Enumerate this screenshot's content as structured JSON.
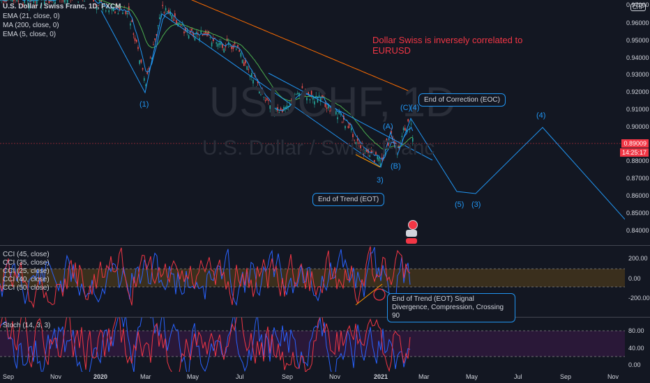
{
  "main_pane": {
    "title": "U.S. Dollar / Swiss Franc, 1D, FXCM",
    "indicators": [
      "EMA (21, close, 0)",
      "MA (200, close, 0)",
      "EMA (5, close, 0)"
    ],
    "watermark_symbol": "USDCHF, 1D",
    "watermark_name": "U.S. Dollar / Swiss Franc",
    "currency_badge": "CHF",
    "note": "Dollar Swiss is inversely correlated to EURUSD",
    "price_axis": [
      "0.97000",
      "0.96000",
      "0.95000",
      "0.94000",
      "0.93000",
      "0.92000",
      "0.91000",
      "0.90000",
      "0.88000",
      "0.87000",
      "0.86000",
      "0.85000",
      "0.84000"
    ],
    "last_price": "0.89009",
    "countdown": "14:25:17",
    "wave_labels": [
      "(1)",
      "(A)",
      "(C)",
      "(4)",
      "(B)",
      "3)",
      "(5)",
      "(3)",
      "(4)"
    ],
    "callout_eoc": "End of Correction (EOC)",
    "callout_eot": "End of Trend (EOT)"
  },
  "cci_pane": {
    "indicators": [
      "CCI (45, close)",
      "CCI (35, close)",
      "CCI (25, close)",
      "CCI (40, close)",
      "CCI (50, close)"
    ],
    "axis": [
      "200.00",
      "0.00",
      "-200.00"
    ],
    "callout": "End of Trend (EOT) Signal Divergence, Compression, Crossing 90"
  },
  "stoch_pane": {
    "title": "Stoch (14, 3, 3)",
    "axis": [
      "80.00",
      "40.00",
      "0.00"
    ]
  },
  "time_axis": [
    "Sep",
    "Nov",
    "2020",
    "Mar",
    "May",
    "Jul",
    "Sep",
    "Nov",
    "2021",
    "Mar",
    "May",
    "Jul",
    "Sep",
    "Nov"
  ],
  "colors": {
    "background": "#131722",
    "wave_line": "#2196f3",
    "up_candle": "#26a69a",
    "down_candle": "#ef5350",
    "ma200": "#ff6d00",
    "note": "#f23645",
    "cci_band": "#3a2f1d",
    "stoch_band": "#2a1838"
  }
}
